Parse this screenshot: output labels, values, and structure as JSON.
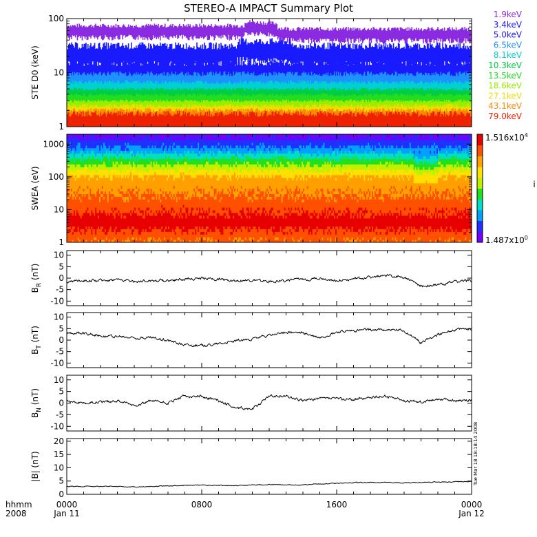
{
  "chart_data": {
    "title": "STEREO-A IMPACT Summary Plot",
    "x_axis": {
      "start": "2008-01-11 00:00",
      "end": "2008-01-12 00:00",
      "row_label_time": "hhmm",
      "row_label_year": "2008",
      "ticks": [
        {
          "time": "0000",
          "date": "Jan 11",
          "hour": 0
        },
        {
          "time": "0800",
          "date": "",
          "hour": 8
        },
        {
          "time": "1600",
          "date": "",
          "hour": 16
        },
        {
          "time": "0000",
          "date": "Jan 12",
          "hour": 24
        }
      ]
    },
    "timestamp": "Tue Mar 18 18:18:14 2008",
    "panels": [
      {
        "id": "ste",
        "type": "line",
        "ylabel": "STE D0 (keV)",
        "yscale": "log",
        "ylim": [
          1,
          100
        ],
        "yticks": [
          {
            "value": 1,
            "label": "1"
          },
          {
            "value": 10,
            "label": "10"
          },
          {
            "value": 100,
            "label": "100"
          }
        ],
        "series": [
          {
            "name": "1.9keV",
            "color": "#8a2be2",
            "level": 60,
            "spread": 0.13,
            "dips": [
              [
                0.44,
                0.52,
                0.55
              ]
            ]
          },
          {
            "name": "3.4keV",
            "color": "#1a1aff",
            "level": 22,
            "spread": 0.22,
            "dips": [
              [
                0.42,
                0.55,
                0.6
              ]
            ]
          },
          {
            "name": "5.0keV",
            "color": "#1a1aff",
            "level": 11,
            "spread": 0.2,
            "dips": []
          },
          {
            "name": "6.5keV",
            "color": "#1e90ff",
            "level": 7.5,
            "spread": 0.15,
            "dips": []
          },
          {
            "name": "8.1keV",
            "color": "#00d0d0",
            "level": 5.5,
            "spread": 0.12,
            "dips": []
          },
          {
            "name": "10.3keV",
            "color": "#00cc44",
            "level": 4.2,
            "spread": 0.1,
            "dips": []
          },
          {
            "name": "13.5keV",
            "color": "#22dd22",
            "level": 3.3,
            "spread": 0.1,
            "dips": []
          },
          {
            "name": "18.6keV",
            "color": "#99ee00",
            "level": 2.6,
            "spread": 0.09,
            "dips": []
          },
          {
            "name": "27.1keV",
            "color": "#eedd00",
            "level": 2.0,
            "spread": 0.12,
            "dips": []
          },
          {
            "name": "43.1keV",
            "color": "#ff8800",
            "level": 1.6,
            "spread": 0.14,
            "dips": []
          },
          {
            "name": "79.0keV",
            "color": "#ee2200",
            "level": 1.3,
            "spread": 0.18,
            "dips": []
          }
        ]
      },
      {
        "id": "swea",
        "type": "heatmap",
        "ylabel": "SWEA (eV)",
        "yscale": "log",
        "ylim": [
          1,
          2000
        ],
        "yticks": [
          {
            "value": 1,
            "label": "1"
          },
          {
            "value": 10,
            "label": "10"
          },
          {
            "value": 100,
            "label": "100"
          },
          {
            "value": 1000,
            "label": "1000"
          }
        ],
        "colorbar": {
          "max_mantissa": "1.516x10",
          "max_exp": "4",
          "min_mantissa": "1.487x10",
          "min_exp": "0",
          "unit_fragment": "i",
          "colors": [
            "#7000ff",
            "#2030ff",
            "#00a0ff",
            "#00e0c0",
            "#20e020",
            "#c0f000",
            "#ffe000",
            "#ffa000",
            "#ff5000",
            "#e80000"
          ]
        },
        "energy_profile": [
          {
            "e": 1.3,
            "level": 0.82
          },
          {
            "e": 4,
            "level": 0.96
          },
          {
            "e": 10,
            "level": 0.88
          },
          {
            "e": 30,
            "level": 0.8
          },
          {
            "e": 100,
            "level": 0.72
          },
          {
            "e": 200,
            "level": 0.55
          },
          {
            "e": 400,
            "level": 0.38
          },
          {
            "e": 800,
            "level": 0.2
          },
          {
            "e": 1500,
            "level": 0.12
          }
        ]
      },
      {
        "id": "br",
        "type": "line",
        "ylabel_main": "B",
        "ylabel_sub": "R",
        "ylabel_unit": " (nT)",
        "ylim": [
          -12,
          12
        ],
        "yticks": [
          {
            "value": 10,
            "label": "10"
          },
          {
            "value": 5,
            "label": "5"
          },
          {
            "value": 0,
            "label": "0"
          },
          {
            "value": -5,
            "label": "-5"
          },
          {
            "value": -10,
            "label": "-10"
          }
        ],
        "x": [
          0,
          1,
          2,
          3,
          4,
          5,
          6,
          7,
          8,
          9,
          10,
          11,
          12,
          13,
          14,
          15,
          16,
          17,
          18,
          19,
          20,
          21,
          22,
          23,
          24
        ],
        "y": [
          -1.5,
          -1,
          -1,
          -0.5,
          -1.5,
          -1,
          -1,
          -0.5,
          0,
          -0.5,
          -1,
          -1,
          -1.5,
          -1,
          -0.5,
          0,
          -1,
          -0.5,
          0.5,
          1,
          0.5,
          -3.5,
          -3,
          -1.5,
          -1
        ]
      },
      {
        "id": "bt",
        "type": "line",
        "ylabel_main": "B",
        "ylabel_sub": "T",
        "ylabel_unit": " (nT)",
        "ylim": [
          -12,
          12
        ],
        "yticks": [
          {
            "value": 10,
            "label": "10"
          },
          {
            "value": 5,
            "label": "5"
          },
          {
            "value": 0,
            "label": "0"
          },
          {
            "value": -5,
            "label": "-5"
          },
          {
            "value": -10,
            "label": "-10"
          }
        ],
        "x": [
          0,
          1,
          2,
          3,
          4,
          5,
          6,
          7,
          8,
          9,
          10,
          11,
          12,
          13,
          14,
          15,
          16,
          17,
          18,
          19,
          20,
          21,
          22,
          23,
          24
        ],
        "y": [
          3,
          3,
          2,
          1.5,
          1,
          1,
          0,
          -2,
          -2.5,
          -1.5,
          -0.5,
          0.5,
          2,
          3.5,
          3,
          1,
          3.5,
          4,
          4.5,
          4.5,
          4,
          -1,
          2.5,
          4.5,
          5
        ]
      },
      {
        "id": "bn",
        "type": "line",
        "ylabel_main": "B",
        "ylabel_sub": "N",
        "ylabel_unit": " (nT)",
        "ylim": [
          -12,
          12
        ],
        "yticks": [
          {
            "value": 10,
            "label": "10"
          },
          {
            "value": 5,
            "label": "5"
          },
          {
            "value": 0,
            "label": "0"
          },
          {
            "value": -5,
            "label": "-5"
          },
          {
            "value": -10,
            "label": "-10"
          }
        ],
        "x": [
          0,
          1,
          2,
          3,
          4,
          5,
          6,
          7,
          8,
          9,
          10,
          11,
          12,
          13,
          14,
          15,
          16,
          17,
          18,
          19,
          20,
          21,
          22,
          23,
          24
        ],
        "y": [
          1,
          0,
          0.5,
          1,
          -1,
          1,
          0,
          3,
          3,
          1,
          -2,
          -2.5,
          3,
          3,
          1,
          2,
          2,
          1.5,
          2.5,
          3,
          1,
          0.5,
          2,
          1,
          1
        ]
      },
      {
        "id": "bmag",
        "type": "line",
        "ylabel_main": "|B| (nT)",
        "ylim": [
          0,
          21
        ],
        "yticks": [
          {
            "value": 20,
            "label": "20"
          },
          {
            "value": 15,
            "label": "15"
          },
          {
            "value": 10,
            "label": "10"
          },
          {
            "value": 5,
            "label": "5"
          },
          {
            "value": 0,
            "label": "0"
          }
        ],
        "x": [
          0,
          2,
          4,
          6,
          8,
          10,
          12,
          14,
          16,
          18,
          20,
          22,
          24
        ],
        "y": [
          3,
          3,
          2.8,
          3.2,
          3.5,
          3.3,
          3.7,
          3.5,
          4.2,
          4.5,
          4.3,
          4.6,
          4.8
        ]
      }
    ]
  }
}
